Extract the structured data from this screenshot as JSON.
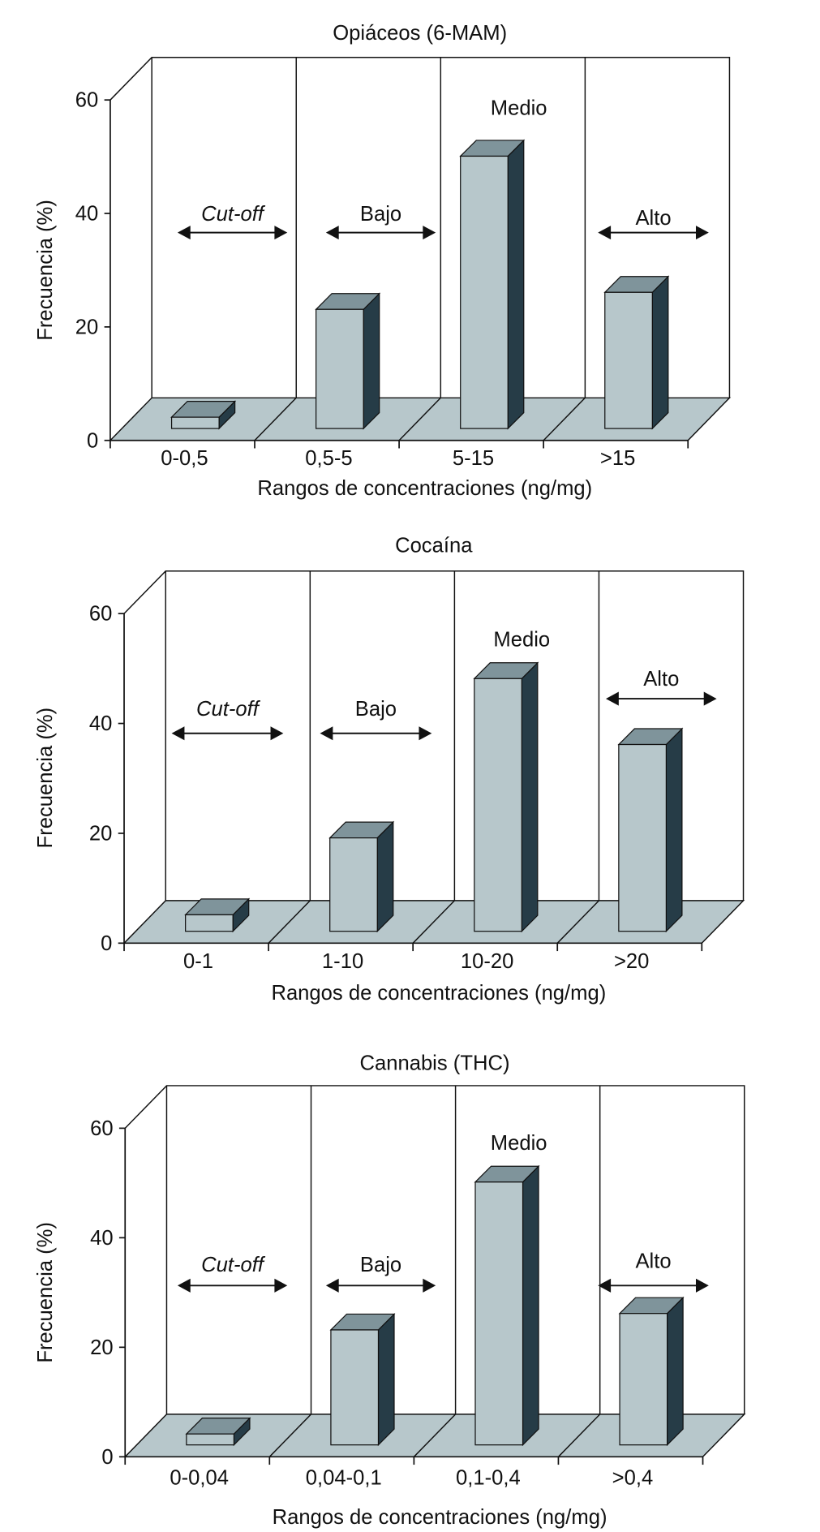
{
  "colors": {
    "floor": "#b7c7cb",
    "bar_front": "#b7c7cb",
    "bar_top": "#7f949b",
    "bar_side": "#263c47",
    "line": "#111111"
  },
  "chart_data": [
    {
      "type": "bar",
      "title": "Opiáceos (6-MAM)",
      "xlabel": "Rangos de concentraciones (ng/mg)",
      "ylabel": "Frecuencia (%)",
      "ylim": [
        0,
        60
      ],
      "yticks": [
        "0",
        "20",
        "40",
        "60"
      ],
      "categories": [
        "0-0,5",
        "0,5-5",
        "5-15",
        ">15"
      ],
      "values": [
        2,
        21,
        48,
        24
      ],
      "annotations": [
        "Cut-off",
        "Bajo",
        "Medio",
        "Alto"
      ]
    },
    {
      "type": "bar",
      "title": "Cocaína",
      "xlabel": "Rangos de concentraciones (ng/mg)",
      "ylabel": "Frecuencia (%)",
      "ylim": [
        0,
        60
      ],
      "yticks": [
        "0",
        "20",
        "40",
        "60"
      ],
      "categories": [
        "0-1",
        "1-10",
        "10-20",
        ">20"
      ],
      "values": [
        3,
        17,
        46,
        34
      ],
      "annotations": [
        "Cut-off",
        "Bajo",
        "Medio",
        "Alto"
      ]
    },
    {
      "type": "bar",
      "title": "Cannabis (THC)",
      "xlabel": "Rangos de concentraciones (ng/mg)",
      "ylabel": "Frecuencia (%)",
      "ylim": [
        0,
        60
      ],
      "yticks": [
        "0",
        "20",
        "40",
        "60"
      ],
      "categories": [
        "0-0,04",
        "0,04-0,1",
        "0,1-0,4",
        ">0,4"
      ],
      "values": [
        2,
        21,
        48,
        24
      ],
      "annotations": [
        "Cut-off",
        "Bajo",
        "Medio",
        "Alto"
      ]
    }
  ]
}
